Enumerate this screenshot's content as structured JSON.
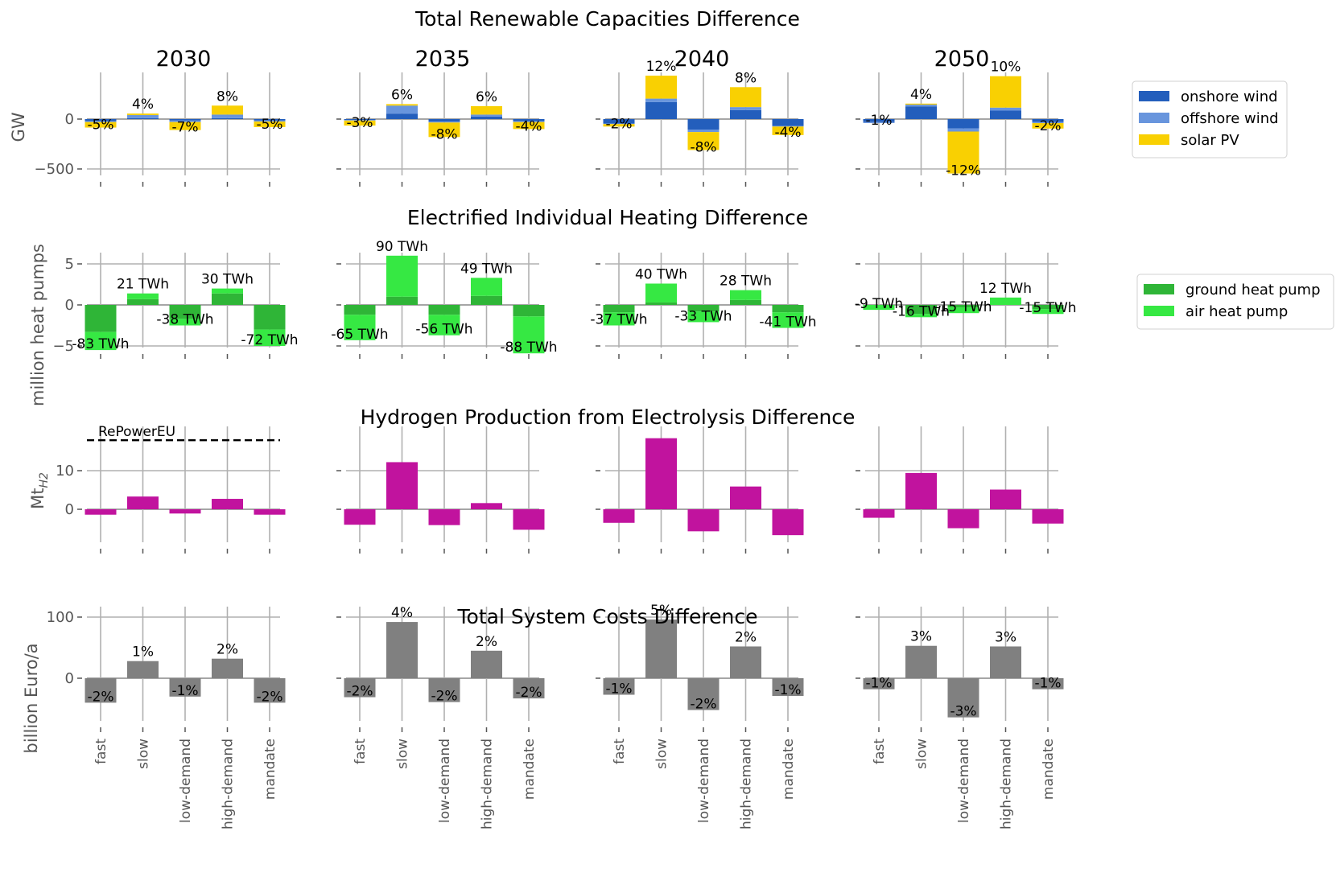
{
  "figure": {
    "categories": [
      "fast",
      "slow",
      "low-demand",
      "high-demand",
      "mandate"
    ],
    "years": [
      "2030",
      "2035",
      "2040",
      "2050"
    ]
  },
  "chart_data": [
    {
      "id": "renewables",
      "type": "bar",
      "stacked": true,
      "title": "Total Renewable Capacities Difference",
      "ylabel": "GW",
      "ylim": [
        -560,
        450
      ],
      "yticks": [
        {
          "v": 0,
          "t": "0"
        },
        {
          "v": -500,
          "t": "−500"
        }
      ],
      "grid": true,
      "legend": {
        "placement": "right",
        "entries": [
          {
            "name": "onshore wind",
            "color": "#235ebc"
          },
          {
            "name": "offshore wind",
            "color": "#6895dd"
          },
          {
            "name": "solar PV",
            "color": "#f9d002"
          }
        ]
      },
      "categories": [
        "fast",
        "slow",
        "low-demand",
        "high-demand",
        "mandate"
      ],
      "panels": [
        {
          "year": "2030",
          "series": [
            {
              "name": "onshore wind",
              "values": [
                -20,
                10,
                -15,
                10,
                -15
              ]
            },
            {
              "name": "offshore wind",
              "values": [
                -10,
                30,
                -15,
                35,
                -10
              ]
            },
            {
              "name": "solar PV",
              "values": [
                -55,
                15,
                -80,
                90,
                -55
              ]
            }
          ],
          "labels": [
            "-5%",
            "4%",
            "-7%",
            "8%",
            "-5%"
          ]
        },
        {
          "year": "2035",
          "series": [
            {
              "name": "onshore wind",
              "values": [
                -10,
                55,
                -25,
                25,
                -20
              ]
            },
            {
              "name": "offshore wind",
              "values": [
                -5,
                80,
                -10,
                20,
                -10
              ]
            },
            {
              "name": "solar PV",
              "values": [
                -50,
                15,
                -145,
                85,
                -70
              ]
            }
          ],
          "labels": [
            "-3%",
            "6%",
            "-8%",
            "6%",
            "-4%"
          ]
        },
        {
          "year": "2040",
          "series": [
            {
              "name": "onshore wind",
              "values": [
                -45,
                170,
                -105,
                90,
                -70
              ]
            },
            {
              "name": "offshore wind",
              "values": [
                -5,
                35,
                -25,
                30,
                -5
              ]
            },
            {
              "name": "solar PV",
              "values": [
                -25,
                230,
                -180,
                200,
                -85
              ]
            }
          ],
          "labels": [
            "-2%",
            "12%",
            "-8%",
            "8%",
            "-4%"
          ]
        },
        {
          "year": "2050",
          "series": [
            {
              "name": "onshore wind",
              "values": [
                -30,
                125,
                -95,
                85,
                -30
              ]
            },
            {
              "name": "offshore wind",
              "values": [
                -10,
                20,
                -30,
                30,
                -10
              ]
            },
            {
              "name": "solar PV",
              "values": [
                0,
                10,
                -420,
                315,
                -55
              ]
            }
          ],
          "labels": [
            "-1%",
            "4%",
            "-12%",
            "10%",
            "-2%"
          ]
        }
      ]
    },
    {
      "id": "heating",
      "type": "bar",
      "stacked": true,
      "title": "Electrified Individual Heating Difference",
      "ylabel": "million heat pumps",
      "ylim": [
        -6.4,
        7.6
      ],
      "yticks": [
        {
          "v": 5,
          "t": "5"
        },
        {
          "v": 0,
          "t": "0"
        },
        {
          "v": -5,
          "t": "−5"
        }
      ],
      "grid": true,
      "legend": {
        "placement": "right",
        "entries": [
          {
            "name": "ground heat pump",
            "color": "#2fb537"
          },
          {
            "name": "air heat pump",
            "color": "#36e843"
          }
        ]
      },
      "categories": [
        "fast",
        "slow",
        "low-demand",
        "high-demand",
        "mandate"
      ],
      "panels": [
        {
          "year": "2030",
          "series": [
            {
              "name": "ground heat pump",
              "values": [
                -3.3,
                0.7,
                -1.7,
                1.4,
                -3.0
              ]
            },
            {
              "name": "air heat pump",
              "values": [
                -2.2,
                0.7,
                -0.8,
                0.6,
                -2.0
              ]
            }
          ],
          "labels": [
            "-83 TWh",
            "21 TWh",
            "-38 TWh",
            "30 TWh",
            "-72 TWh"
          ]
        },
        {
          "year": "2035",
          "series": [
            {
              "name": "ground heat pump",
              "values": [
                -1.2,
                1.0,
                -1.2,
                1.1,
                -1.4
              ]
            },
            {
              "name": "air heat pump",
              "values": [
                -3.1,
                5.0,
                -2.5,
                2.2,
                -4.5
              ]
            }
          ],
          "labels": [
            "-65 TWh",
            "90 TWh",
            "-56 TWh",
            "49 TWh",
            "-88 TWh"
          ]
        },
        {
          "year": "2040",
          "series": [
            {
              "name": "ground heat pump",
              "values": [
                -0.9,
                0.3,
                -0.8,
                0.6,
                -0.9
              ]
            },
            {
              "name": "air heat pump",
              "values": [
                -1.6,
                2.3,
                -1.3,
                1.2,
                -1.9
              ]
            }
          ],
          "labels": [
            "-37 TWh",
            "40 TWh",
            "-33 TWh",
            "28 TWh",
            "-41 TWh"
          ]
        },
        {
          "year": "2050",
          "series": [
            {
              "name": "ground heat pump",
              "values": [
                0,
                -1.1,
                -0.3,
                0,
                -0.5
              ]
            },
            {
              "name": "air heat pump",
              "values": [
                -0.6,
                -0.4,
                -0.7,
                0.9,
                -0.6
              ]
            }
          ],
          "labels": [
            "-9 TWh",
            "-16 TWh",
            "-15 TWh",
            "12 TWh",
            "-15 TWh"
          ]
        }
      ]
    },
    {
      "id": "hydrogen",
      "type": "bar",
      "title": "Hydrogen Production from Electrolysis Difference",
      "ylabel": "Mt_H2",
      "ylim": [
        -8.5,
        20.5
      ],
      "yticks": [
        {
          "v": 10,
          "t": "10"
        },
        {
          "v": 0,
          "t": "0"
        }
      ],
      "grid": true,
      "color": "#c1139e",
      "reference_line": {
        "label": "RePowerEU",
        "value": 17.9,
        "panel": "2030"
      },
      "categories": [
        "fast",
        "slow",
        "low-demand",
        "high-demand",
        "mandate"
      ],
      "panels": [
        {
          "year": "2030",
          "values": [
            -1.4,
            3.3,
            -1.1,
            2.7,
            -1.4
          ]
        },
        {
          "year": "2035",
          "values": [
            -4.0,
            12.2,
            -4.1,
            1.6,
            -5.3
          ]
        },
        {
          "year": "2040",
          "values": [
            -3.5,
            18.4,
            -5.7,
            5.9,
            -6.7
          ]
        },
        {
          "year": "2050",
          "values": [
            -2.2,
            9.4,
            -4.9,
            5.1,
            -3.7
          ]
        }
      ]
    },
    {
      "id": "costs",
      "type": "bar",
      "title": "Total System Costs Difference",
      "ylabel": "billion Euro/a",
      "ylim": [
        -75,
        110
      ],
      "yticks": [
        {
          "v": 100,
          "t": "100"
        },
        {
          "v": 0,
          "t": "0"
        }
      ],
      "grid": true,
      "color": "#808080",
      "categories": [
        "fast",
        "slow",
        "low-demand",
        "high-demand",
        "mandate"
      ],
      "panels": [
        {
          "year": "2030",
          "values": [
            -40,
            28,
            -30,
            32,
            -40
          ],
          "labels": [
            "-2%",
            "1%",
            "-1%",
            "2%",
            "-2%"
          ]
        },
        {
          "year": "2035",
          "values": [
            -31,
            92,
            -39,
            45,
            -33
          ],
          "labels": [
            "-2%",
            "4%",
            "-2%",
            "2%",
            "-2%"
          ]
        },
        {
          "year": "2040",
          "values": [
            -27,
            96,
            -52,
            52,
            -29
          ],
          "labels": [
            "-1%",
            "5%",
            "-2%",
            "2%",
            "-1%"
          ]
        },
        {
          "year": "2050",
          "values": [
            -18,
            53,
            -64,
            52,
            -18
          ],
          "labels": [
            "-1%",
            "3%",
            "-3%",
            "3%",
            "-1%"
          ]
        }
      ]
    }
  ]
}
